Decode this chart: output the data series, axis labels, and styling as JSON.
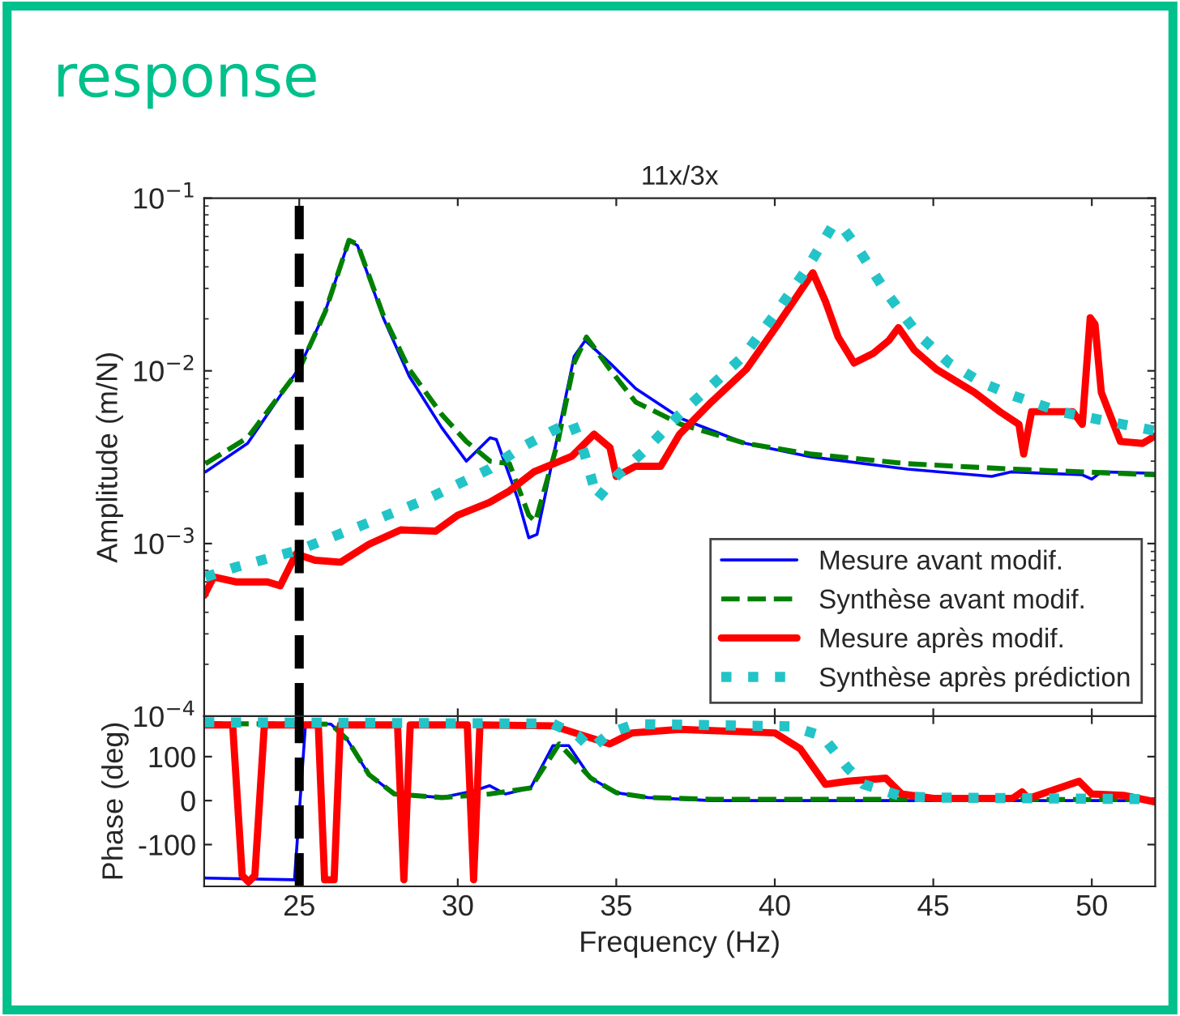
{
  "chart_data": [
    {
      "type": "line",
      "title": "11x/3x",
      "ylabel": "Amplitude (m/N)",
      "log": "y",
      "xlim": [
        22,
        52
      ],
      "xticks": [
        25,
        30,
        35,
        40,
        45,
        50
      ],
      "ylim": [
        0.0001,
        0.1
      ],
      "yticks": [
        {
          "value": 0.0001,
          "label": "10$^{−4}$"
        },
        {
          "value": 0.001,
          "label": "10$^{−3}$"
        },
        {
          "value": 0.01,
          "label": "10$^{−2}$"
        },
        {
          "value": 0.1,
          "label": "10$^{−1}$"
        }
      ],
      "tick_labels": "y",
      "grid": false,
      "legend": "bottom right",
      "marker": "none",
      "annotations": [
        "response"
      ],
      "ref_lines": [
        {
          "axis": "x",
          "value": 25,
          "color": "#000000",
          "line_style": "dashed"
        }
      ],
      "series": [
        {
          "name": "Mesure avant modif.",
          "color": "#0000ff",
          "line_style": "solid",
          "x": [
            22.04,
            23.37,
            25,
            25.82,
            26.57,
            26.84,
            27.65,
            28.47,
            29.49,
            30.27,
            31.02,
            31.22,
            31.9,
            32.24,
            32.5,
            33.16,
            33.67,
            34.02,
            34.8,
            35.61,
            37.04,
            39.08,
            41.12,
            44.18,
            46.84,
            47.45,
            49.7,
            50,
            50.3,
            52
          ],
          "values": [
            0.0026,
            0.0038,
            0.0104,
            0.0221,
            0.057,
            0.053,
            0.0203,
            0.0093,
            0.0047,
            0.003,
            0.0041,
            0.004,
            0.0018,
            0.00108,
            0.00113,
            0.0043,
            0.0121,
            0.015,
            0.0111,
            0.0079,
            0.0053,
            0.0038,
            0.00318,
            0.0027,
            0.00245,
            0.0026,
            0.0025,
            0.00236,
            0.0026,
            0.00255
          ]
        },
        {
          "name": "Synthèse avant modif.",
          "color": "#008000",
          "line_style": "dashed",
          "x": [
            22.04,
            23.37,
            25,
            25.82,
            26.57,
            26.84,
            27.65,
            28.47,
            29.49,
            30.27,
            31.02,
            31.63,
            32.24,
            32.45,
            33.16,
            33.67,
            34.06,
            34.8,
            35.61,
            37.04,
            39.08,
            41.12,
            44.18,
            47.45,
            52
          ],
          "values": [
            0.0029,
            0.0041,
            0.0102,
            0.022,
            0.057,
            0.054,
            0.021,
            0.0102,
            0.0056,
            0.0039,
            0.003,
            0.0029,
            0.00146,
            0.00134,
            0.0039,
            0.0111,
            0.0157,
            0.0102,
            0.0066,
            0.0049,
            0.0038,
            0.0033,
            0.0029,
            0.0027,
            0.0025
          ]
        },
        {
          "name": "Mesure après modif.",
          "color": "#ff0000",
          "line_style": "solid",
          "x": [
            22.0,
            22.3,
            23.0,
            24.0,
            24.4,
            24.9,
            25.5,
            26.3,
            27.2,
            28.2,
            29.3,
            30.0,
            31.0,
            31.6,
            32.4,
            33.6,
            34.3,
            34.8,
            35.0,
            35.6,
            36.4,
            37.0,
            38.0,
            39.1,
            40.1,
            41.2,
            41.6,
            42.0,
            42.5,
            43.1,
            43.6,
            43.9,
            44.4,
            45.1,
            46.3,
            47.1,
            47.7,
            47.85,
            48.1,
            49.4,
            49.7,
            49.95,
            50.1,
            50.3,
            50.9,
            51.6,
            52.0
          ],
          "values": [
            0.0005,
            0.00064,
            0.0006,
            0.0006,
            0.00057,
            0.00087,
            0.0008,
            0.00078,
            0.00099,
            0.0012,
            0.00118,
            0.00146,
            0.00173,
            0.002,
            0.0026,
            0.0032,
            0.0043,
            0.0036,
            0.00245,
            0.0028,
            0.0028,
            0.0043,
            0.0066,
            0.0102,
            0.0186,
            0.037,
            0.0252,
            0.0157,
            0.0111,
            0.0126,
            0.015,
            0.0178,
            0.0132,
            0.0102,
            0.0075,
            0.0058,
            0.0049,
            0.0033,
            0.0058,
            0.0058,
            0.0049,
            0.0203,
            0.0186,
            0.0075,
            0.0039,
            0.0038,
            0.0042
          ]
        },
        {
          "name": "Synthèse après prédiction",
          "color": "#22c4c8",
          "line_style": "dotted",
          "x": [
            22.04,
            23,
            25,
            27,
            29,
            31,
            32,
            33,
            33.6,
            34.0,
            34.4,
            35,
            36,
            37,
            38,
            39,
            40,
            41,
            41.8,
            42.1,
            42.6,
            43.5,
            44.5,
            45.5,
            46.5,
            47.5,
            49,
            50.5,
            52
          ],
          "values": [
            0.00064,
            0.00073,
            0.00092,
            0.00128,
            0.0018,
            0.0027,
            0.0036,
            0.0045,
            0.0051,
            0.0033,
            0.00181,
            0.00245,
            0.0036,
            0.0056,
            0.0082,
            0.0121,
            0.0212,
            0.0387,
            0.068,
            0.069,
            0.052,
            0.0287,
            0.0164,
            0.0111,
            0.0086,
            0.0072,
            0.0058,
            0.0051,
            0.0045
          ]
        }
      ]
    },
    {
      "type": "line",
      "xlabel": "Frequency (Hz)",
      "ylabel": "Phase (deg)",
      "xlim": [
        22,
        52
      ],
      "xticks": [
        25,
        30,
        35,
        40,
        45,
        50
      ],
      "ylim": [
        -195,
        192
      ],
      "yticks": [
        -100,
        0,
        100
      ],
      "grid": false,
      "marker": "none",
      "ref_lines": [
        {
          "axis": "x",
          "value": 25,
          "color": "#000000",
          "line_style": "dashed"
        }
      ],
      "series": [
        {
          "color": "#0000ff",
          "line_style": "solid",
          "x": [
            22,
            24.85,
            25.2,
            26.0,
            26.5,
            27.2,
            28,
            29.5,
            30.5,
            31,
            31.5,
            32.3,
            33.0,
            33.5,
            34.2,
            35,
            36,
            38,
            45,
            52
          ],
          "values": [
            -176,
            -180,
            176,
            174,
            140,
            59,
            15,
            7,
            22,
            34,
            15,
            29,
            125,
            125,
            51,
            18,
            7,
            0,
            0,
            0
          ]
        },
        {
          "color": "#008000",
          "line_style": "dashed",
          "x": [
            22,
            26.0,
            26.5,
            27.2,
            28,
            29.5,
            30.5,
            31,
            32.3,
            33.2,
            34.2,
            35,
            36,
            38,
            45,
            52
          ],
          "values": [
            175,
            174,
            140,
            59,
            15,
            7,
            12,
            15,
            29,
            129,
            51,
            18,
            7,
            3,
            3,
            2
          ]
        },
        {
          "color": "#ff0000",
          "line_style": "solid",
          "x": [
            22,
            22.9,
            23.2,
            23.4,
            23.6,
            23.9,
            25.6,
            25.8,
            26.1,
            26.3,
            28.1,
            28.3,
            28.5,
            30.3,
            30.5,
            30.7,
            33,
            34.0,
            34.8,
            35.5,
            37,
            40,
            40.8,
            41.6,
            42.3,
            43.5,
            44.0,
            45,
            47.5,
            47.8,
            48,
            49.6,
            50,
            51,
            52
          ],
          "values": [
            172,
            172,
            -170,
            -185,
            -170,
            172,
            172,
            -180,
            -180,
            172,
            172,
            -180,
            172,
            172,
            -180,
            172,
            170,
            147,
            129,
            154,
            162,
            154,
            118,
            37,
            44,
            51,
            15,
            5,
            5,
            20,
            5,
            44,
            15,
            12,
            -3
          ]
        },
        {
          "color": "#22c4c8",
          "line_style": "dotted",
          "x": [
            22,
            33,
            33.8,
            34.2,
            34.8,
            35.6,
            40.5,
            41.5,
            42.3,
            42.8,
            44,
            45,
            52
          ],
          "values": [
            178,
            175,
            147,
            118,
            154,
            174,
            169,
            147,
            74,
            37,
            10,
            7,
            3
          ]
        }
      ]
    }
  ]
}
